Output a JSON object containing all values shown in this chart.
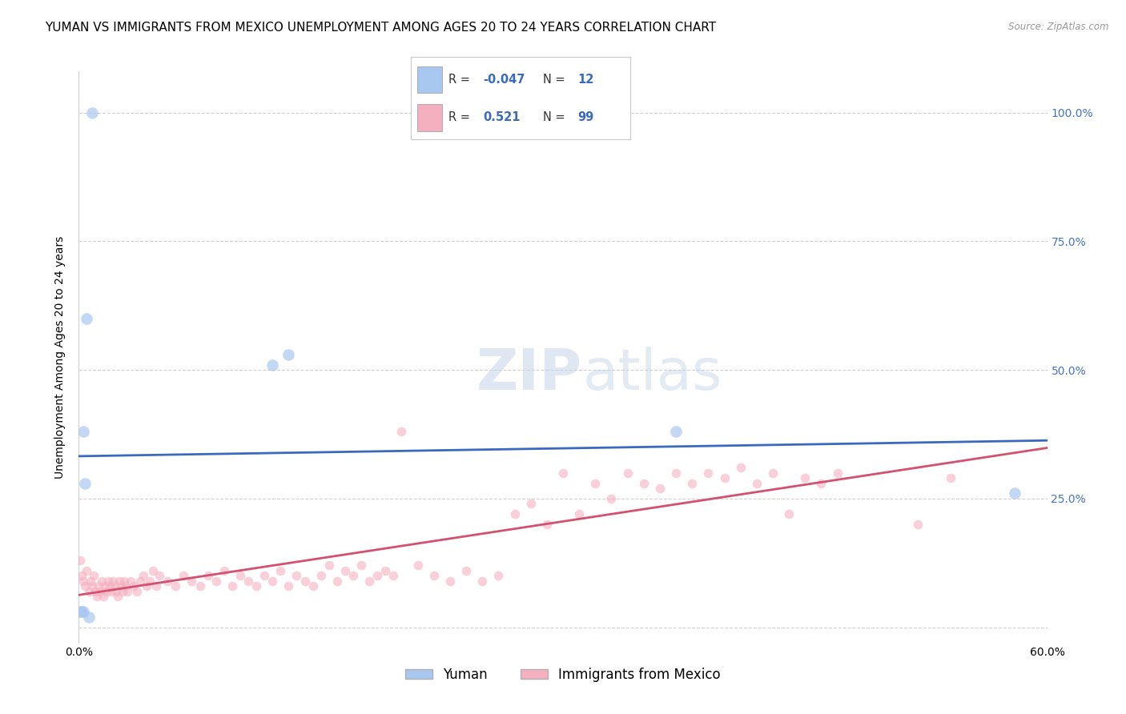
{
  "title": "YUMAN VS IMMIGRANTS FROM MEXICO UNEMPLOYMENT AMONG AGES 20 TO 24 YEARS CORRELATION CHART",
  "source": "Source: ZipAtlas.com",
  "ylabel": "Unemployment Among Ages 20 to 24 years",
  "xmin": 0.0,
  "xmax": 0.6,
  "ymin": -0.03,
  "ymax": 1.08,
  "yticks": [
    0.0,
    0.25,
    0.5,
    0.75,
    1.0
  ],
  "ytick_labels_right": [
    "",
    "25.0%",
    "50.0%",
    "75.0%",
    "100.0%"
  ],
  "xticks": [
    0.0,
    0.1,
    0.2,
    0.3,
    0.4,
    0.5,
    0.6
  ],
  "xtick_labels": [
    "0.0%",
    "",
    "",
    "",
    "",
    "",
    "60.0%"
  ],
  "blue_R": -0.047,
  "blue_N": 12,
  "pink_R": 0.521,
  "pink_N": 99,
  "legend_label_blue": "Yuman",
  "legend_label_pink": "Immigrants from Mexico",
  "blue_scatter_color": "#a8c8f0",
  "pink_scatter_color": "#f5b0c0",
  "blue_line_color": "#3a6abf",
  "pink_line_color": "#d45070",
  "watermark_zip": "ZIP",
  "watermark_atlas": "atlas",
  "blue_points": [
    [
      0.008,
      1.0
    ],
    [
      0.005,
      0.6
    ],
    [
      0.12,
      0.51
    ],
    [
      0.13,
      0.53
    ],
    [
      0.003,
      0.38
    ],
    [
      0.004,
      0.28
    ],
    [
      0.37,
      0.38
    ],
    [
      0.58,
      0.26
    ],
    [
      0.006,
      0.02
    ],
    [
      0.003,
      0.03
    ],
    [
      0.002,
      0.03
    ],
    [
      0.001,
      0.03
    ]
  ],
  "pink_points": [
    [
      0.001,
      0.13
    ],
    [
      0.002,
      0.1
    ],
    [
      0.003,
      0.09
    ],
    [
      0.004,
      0.08
    ],
    [
      0.005,
      0.11
    ],
    [
      0.006,
      0.07
    ],
    [
      0.007,
      0.09
    ],
    [
      0.008,
      0.08
    ],
    [
      0.009,
      0.1
    ],
    [
      0.01,
      0.07
    ],
    [
      0.011,
      0.06
    ],
    [
      0.012,
      0.08
    ],
    [
      0.013,
      0.07
    ],
    [
      0.014,
      0.09
    ],
    [
      0.015,
      0.06
    ],
    [
      0.016,
      0.08
    ],
    [
      0.017,
      0.07
    ],
    [
      0.018,
      0.09
    ],
    [
      0.019,
      0.08
    ],
    [
      0.02,
      0.07
    ],
    [
      0.021,
      0.09
    ],
    [
      0.022,
      0.08
    ],
    [
      0.023,
      0.07
    ],
    [
      0.024,
      0.06
    ],
    [
      0.025,
      0.09
    ],
    [
      0.026,
      0.08
    ],
    [
      0.027,
      0.07
    ],
    [
      0.028,
      0.09
    ],
    [
      0.029,
      0.08
    ],
    [
      0.03,
      0.07
    ],
    [
      0.032,
      0.09
    ],
    [
      0.034,
      0.08
    ],
    [
      0.036,
      0.07
    ],
    [
      0.038,
      0.09
    ],
    [
      0.04,
      0.1
    ],
    [
      0.042,
      0.08
    ],
    [
      0.044,
      0.09
    ],
    [
      0.046,
      0.11
    ],
    [
      0.048,
      0.08
    ],
    [
      0.05,
      0.1
    ],
    [
      0.055,
      0.09
    ],
    [
      0.06,
      0.08
    ],
    [
      0.065,
      0.1
    ],
    [
      0.07,
      0.09
    ],
    [
      0.075,
      0.08
    ],
    [
      0.08,
      0.1
    ],
    [
      0.085,
      0.09
    ],
    [
      0.09,
      0.11
    ],
    [
      0.095,
      0.08
    ],
    [
      0.1,
      0.1
    ],
    [
      0.105,
      0.09
    ],
    [
      0.11,
      0.08
    ],
    [
      0.115,
      0.1
    ],
    [
      0.12,
      0.09
    ],
    [
      0.125,
      0.11
    ],
    [
      0.13,
      0.08
    ],
    [
      0.135,
      0.1
    ],
    [
      0.14,
      0.09
    ],
    [
      0.145,
      0.08
    ],
    [
      0.15,
      0.1
    ],
    [
      0.155,
      0.12
    ],
    [
      0.16,
      0.09
    ],
    [
      0.165,
      0.11
    ],
    [
      0.17,
      0.1
    ],
    [
      0.175,
      0.12
    ],
    [
      0.18,
      0.09
    ],
    [
      0.185,
      0.1
    ],
    [
      0.19,
      0.11
    ],
    [
      0.195,
      0.1
    ],
    [
      0.2,
      0.38
    ],
    [
      0.21,
      0.12
    ],
    [
      0.22,
      0.1
    ],
    [
      0.23,
      0.09
    ],
    [
      0.24,
      0.11
    ],
    [
      0.25,
      0.09
    ],
    [
      0.26,
      0.1
    ],
    [
      0.27,
      0.22
    ],
    [
      0.28,
      0.24
    ],
    [
      0.29,
      0.2
    ],
    [
      0.3,
      0.3
    ],
    [
      0.31,
      0.22
    ],
    [
      0.32,
      0.28
    ],
    [
      0.33,
      0.25
    ],
    [
      0.34,
      0.3
    ],
    [
      0.35,
      0.28
    ],
    [
      0.36,
      0.27
    ],
    [
      0.37,
      0.3
    ],
    [
      0.38,
      0.28
    ],
    [
      0.39,
      0.3
    ],
    [
      0.4,
      0.29
    ],
    [
      0.41,
      0.31
    ],
    [
      0.42,
      0.28
    ],
    [
      0.43,
      0.3
    ],
    [
      0.44,
      0.22
    ],
    [
      0.45,
      0.29
    ],
    [
      0.46,
      0.28
    ],
    [
      0.47,
      0.3
    ],
    [
      0.52,
      0.2
    ],
    [
      0.54,
      0.29
    ]
  ],
  "background_color": "#ffffff",
  "grid_color": "#d0d0d0",
  "title_fontsize": 11,
  "axis_label_fontsize": 10,
  "tick_fontsize": 10,
  "right_tick_color": "#4472c4"
}
